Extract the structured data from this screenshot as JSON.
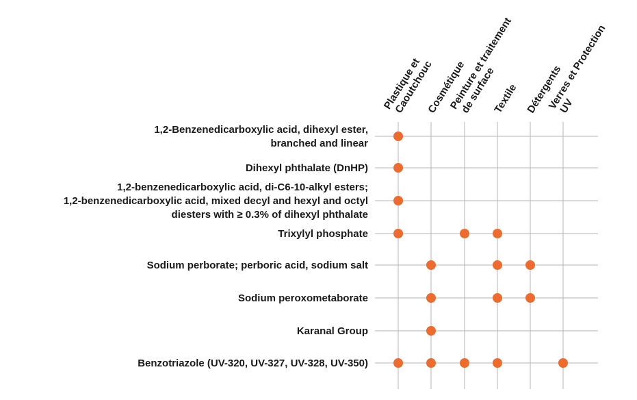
{
  "chart_data": {
    "type": "dot-matrix",
    "title": "",
    "columns": [
      [
        "Plastique et",
        "Caoutchouc"
      ],
      [
        "Cosmétique"
      ],
      [
        "Peinture et traitement",
        "de surface"
      ],
      [
        "Textile"
      ],
      [
        "Détergents"
      ],
      [
        "Verres et Protection",
        "UV"
      ]
    ],
    "rows": [
      {
        "label": [
          "1,2-Benzenedicarboxylic acid, dihexyl ester,",
          "branched and linear"
        ],
        "uses": [
          0
        ]
      },
      {
        "label": [
          "Dihexyl phthalate (DnHP)"
        ],
        "uses": [
          0
        ]
      },
      {
        "label": [
          "1,2-benzenedicarboxylic acid, di-C6-10-alkyl esters;",
          "1,2-benzenedicarboxylic acid, mixed decyl and hexyl and octyl",
          "diesters with ≥ 0.3% of dihexyl phthalate"
        ],
        "uses": [
          0
        ]
      },
      {
        "label": [
          "Trixylyl phosphate"
        ],
        "uses": [
          0,
          2,
          3
        ]
      },
      {
        "label": [
          "Sodium perborate; perboric acid, sodium salt"
        ],
        "uses": [
          1,
          3,
          4
        ]
      },
      {
        "label": [
          "Sodium peroxometaborate"
        ],
        "uses": [
          1,
          3,
          4
        ]
      },
      {
        "label": [
          "Karanal Group"
        ],
        "uses": [
          1
        ]
      },
      {
        "label": [
          "Benzotriazole (UV-320, UV-327, UV-328, UV-350)"
        ],
        "uses": [
          0,
          1,
          2,
          3,
          5
        ]
      }
    ],
    "dot_color": "#ee6b2e",
    "grid_color": "#b5b5b5"
  }
}
